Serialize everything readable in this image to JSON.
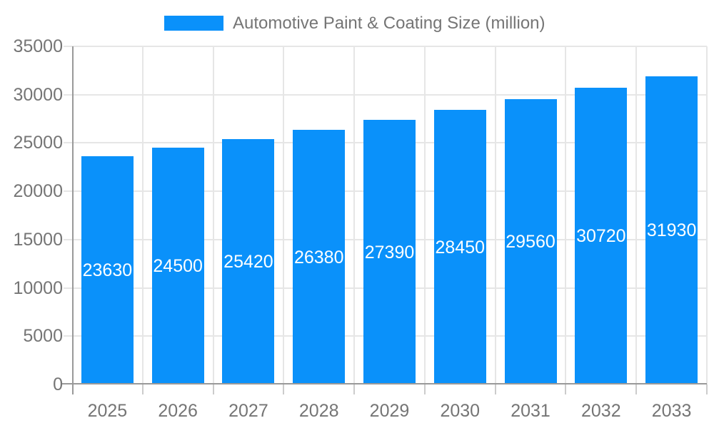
{
  "legend": {
    "label": "Automotive Paint & Coating Size (million)"
  },
  "chart_data": {
    "type": "bar",
    "title": "Automotive Paint & Coating Size (million)",
    "series_name": "Automotive Paint & Coating Size (million)",
    "categories": [
      "2025",
      "2026",
      "2027",
      "2028",
      "2029",
      "2030",
      "2031",
      "2032",
      "2033"
    ],
    "values": [
      23630,
      24500,
      25420,
      26380,
      27390,
      28450,
      29560,
      30720,
      31930
    ],
    "xlabel": "",
    "ylabel": "",
    "ylim": [
      0,
      35000
    ],
    "ytick_step": 5000,
    "yticks": [
      0,
      5000,
      10000,
      15000,
      20000,
      25000,
      30000,
      35000
    ],
    "grid": true,
    "legend_position": "top-center",
    "bar_labels_inside": true,
    "colors": {
      "bar": "#0a91fa",
      "bar_label_text": "#ffffff",
      "axis_text": "#757575",
      "legend_text": "#757575",
      "grid_line": "#e6e6e6",
      "axis_line": "#999999",
      "tick": "#cccccc",
      "background": "#ffffff"
    }
  }
}
